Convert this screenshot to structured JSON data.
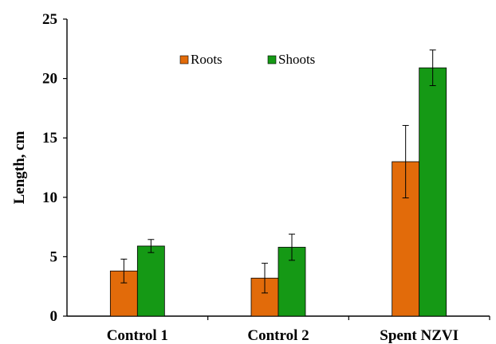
{
  "chart_data": {
    "type": "bar",
    "categories": [
      "Control 1",
      "Control 2",
      "Spent NZVI"
    ],
    "series": [
      {
        "name": "Roots",
        "color": "#e26b0a",
        "values": [
          3.8,
          3.2,
          13.0
        ],
        "errors": [
          1.0,
          1.25,
          3.05
        ]
      },
      {
        "name": "Shoots",
        "color": "#159915",
        "values": [
          5.9,
          5.8,
          20.9
        ],
        "errors": [
          0.55,
          1.1,
          1.5
        ]
      }
    ],
    "title": "",
    "xlabel": "",
    "ylabel": "Length, cm",
    "ylim": [
      0,
      25
    ],
    "yticks": [
      0,
      5,
      10,
      15,
      20,
      25
    ],
    "grid": false,
    "legend_position": "top-center"
  }
}
